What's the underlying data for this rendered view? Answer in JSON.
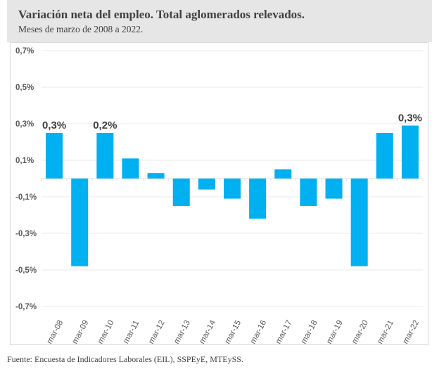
{
  "header": {
    "title": "Variación neta del empleo. Total aglomerados relevados.",
    "subtitle": "Meses de marzo de 2008 a 2022."
  },
  "footer": {
    "source": "Fuente: Encuesta de Indicadores Laborales (EIL), SSPEyE, MTEySS."
  },
  "colors": {
    "bar": "#00B0F0",
    "header_bg": "#e6e6e6",
    "gridline": "#eeeeee",
    "text": "#404040"
  },
  "chart_data": {
    "type": "bar",
    "title": "Variación neta del empleo. Total aglomerados relevados.",
    "subtitle": "Meses de marzo de 2008 a 2022.",
    "xlabel": "",
    "ylabel": "",
    "categories": [
      "mar-08",
      "mar-09",
      "mar-10",
      "mar-11",
      "mar-12",
      "mar-13",
      "mar-14",
      "mar-15",
      "mar-16",
      "mar-17",
      "mar-18",
      "mar-19",
      "mar-20",
      "mar-21",
      "mar-22"
    ],
    "values": [
      0.25,
      -0.48,
      0.25,
      0.11,
      0.03,
      -0.15,
      -0.06,
      -0.11,
      -0.22,
      0.05,
      -0.15,
      -0.11,
      -0.48,
      0.25,
      0.29
    ],
    "unit": "%",
    "ylim": [
      -0.7,
      0.7
    ],
    "yticks": [
      0.7,
      0.5,
      0.3,
      0.1,
      -0.1,
      -0.3,
      -0.5,
      -0.7
    ],
    "ytick_labels": [
      "0,7%",
      "0,5%",
      "0,3%",
      "0,1%",
      "-0,1%",
      "-0,3%",
      "-0,5%",
      "-0,7%"
    ],
    "data_labels": [
      {
        "category": "mar-08",
        "text": "0,3%"
      },
      {
        "category": "mar-10",
        "text": "0,2%"
      },
      {
        "category": "mar-22",
        "text": "0,3%"
      }
    ],
    "grid": true,
    "legend": "none",
    "x_label_rotation": "diagonal"
  }
}
